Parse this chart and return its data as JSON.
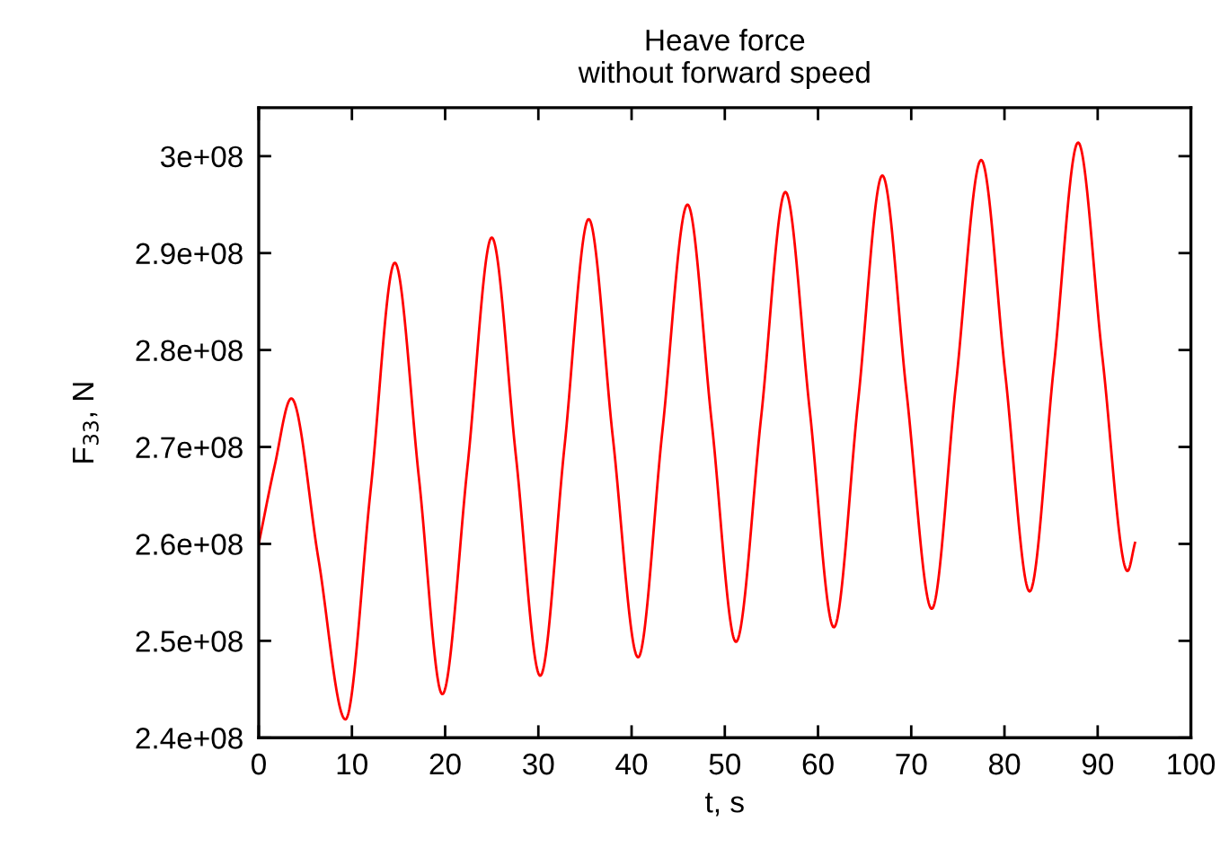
{
  "chart_data": {
    "type": "line",
    "title": "Heave force\nwithout forward speed",
    "xlabel": "t, s",
    "ylabel": "F$_{33}$, N",
    "x": [
      0,
      1.7,
      3.5,
      6.4,
      9.3,
      12.0,
      14.6,
      17.2,
      19.7,
      22.4,
      25.0,
      27.6,
      30.2,
      32.8,
      35.4,
      38.0,
      40.7,
      43.3,
      46.0,
      48.6,
      51.2,
      53.9,
      56.5,
      59.1,
      61.7,
      64.3,
      66.9,
      69.5,
      72.2,
      74.8,
      77.5,
      80.1,
      82.7,
      85.3,
      87.9,
      90.5,
      93.2,
      94.0
    ],
    "series": [
      {
        "color": "#ff0000",
        "values": [
          260000000,
          268000000,
          275000000,
          258500000,
          241900000,
          265500000,
          289000000,
          266700000,
          244500000,
          268000000,
          291600000,
          269000000,
          246400000,
          270000000,
          293500000,
          270900000,
          248300000,
          271600000,
          295000000,
          272500000,
          249900000,
          273100000,
          296300000,
          273900000,
          251400000,
          274700000,
          298000000,
          275600000,
          253300000,
          276500000,
          299600000,
          277400000,
          255100000,
          278300000,
          301400000,
          279300000,
          257200000,
          260100000
        ]
      }
    ],
    "xlim": [
      0,
      100
    ],
    "ylim": [
      240000000,
      305000000
    ],
    "xticks": [
      0,
      10,
      20,
      30,
      40,
      50,
      60,
      70,
      80,
      90,
      100
    ],
    "yticks": [
      {
        "value": 240000000,
        "label": "2.4e+08"
      },
      {
        "value": 250000000,
        "label": "2.5e+08"
      },
      {
        "value": 260000000,
        "label": "2.6e+08"
      },
      {
        "value": 270000000,
        "label": "2.7e+08"
      },
      {
        "value": 280000000,
        "label": "2.8e+08"
      },
      {
        "value": 290000000,
        "label": "2.9e+08"
      },
      {
        "value": 300000000,
        "label": "3e+08"
      }
    ],
    "grid": false,
    "legend": false,
    "line_style": "solid",
    "marker": "none"
  }
}
